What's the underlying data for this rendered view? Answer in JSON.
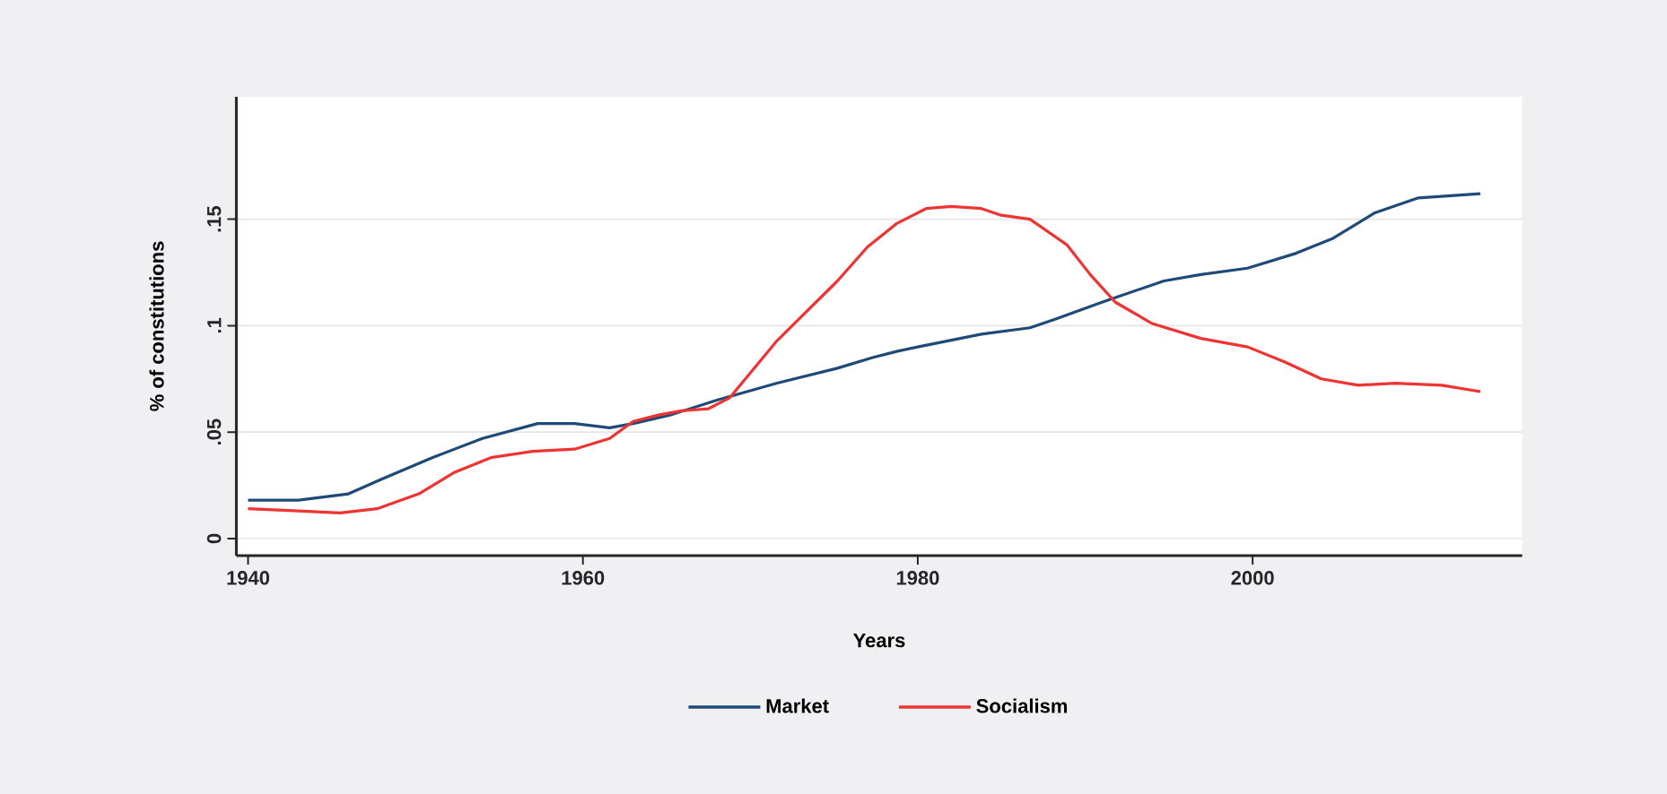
{
  "chart_data": {
    "type": "line",
    "xlabel": "Years",
    "ylabel": "% of constitutions",
    "xlim": [
      1939.3,
      2016.1
    ],
    "ylim": [
      -0.008,
      0.2075
    ],
    "xticks": [
      1940,
      1960,
      1980,
      2000
    ],
    "yticks": [
      0,
      {
        "value": 0.05,
        "label": ".05"
      },
      {
        "value": 0.1,
        "label": ".1"
      },
      {
        "value": 0.15,
        "label": ".15"
      }
    ],
    "grid": "y",
    "legend": "bottom",
    "line_style": "solid",
    "series": [
      {
        "name": "Market",
        "color": "#1f4a78",
        "x": [
          1940,
          1943,
          1946,
          1948,
          1951,
          1954,
          1957.3,
          1959.5,
          1961.6,
          1963,
          1965.2,
          1968,
          1971.6,
          1975.2,
          1977.3,
          1978.8,
          1980,
          1983.8,
          1986.7,
          1988.2,
          1991,
          1994.7,
          1996.9,
          1999.7,
          2002.6,
          2004.8,
          2007.3,
          2009.9,
          2013.6
        ],
        "values": [
          0.018,
          0.018,
          0.021,
          0.028,
          0.038,
          0.047,
          0.054,
          0.054,
          0.052,
          0.054,
          0.058,
          0.065,
          0.073,
          0.08,
          0.085,
          0.088,
          0.09,
          0.096,
          0.099,
          0.103,
          0.111,
          0.121,
          0.124,
          0.127,
          0.134,
          0.141,
          0.153,
          0.16,
          0.162
        ]
      },
      {
        "name": "Socialism",
        "color": "#ee3333",
        "x": [
          1940,
          1943,
          1945.5,
          1947.7,
          1950.2,
          1952.3,
          1954.5,
          1957,
          1959.5,
          1961.6,
          1963,
          1964.5,
          1965.9,
          1967.5,
          1968.75,
          1971.6,
          1975.2,
          1977,
          1978.75,
          1980.5,
          1982,
          1983.8,
          1984.9,
          1986.7,
          1988.9,
          1990.3,
          1991.8,
          1994,
          1996.9,
          1999.7,
          2001.9,
          2004.1,
          2006.3,
          2008.5,
          2011.3,
          2013.6
        ],
        "values": [
          0.014,
          0.013,
          0.012,
          0.014,
          0.021,
          0.031,
          0.038,
          0.041,
          0.042,
          0.047,
          0.055,
          0.058,
          0.06,
          0.061,
          0.066,
          0.093,
          0.121,
          0.137,
          0.148,
          0.155,
          0.156,
          0.155,
          0.152,
          0.15,
          0.138,
          0.124,
          0.111,
          0.101,
          0.094,
          0.09,
          0.083,
          0.075,
          0.072,
          0.073,
          0.072,
          0.069
        ]
      }
    ]
  }
}
